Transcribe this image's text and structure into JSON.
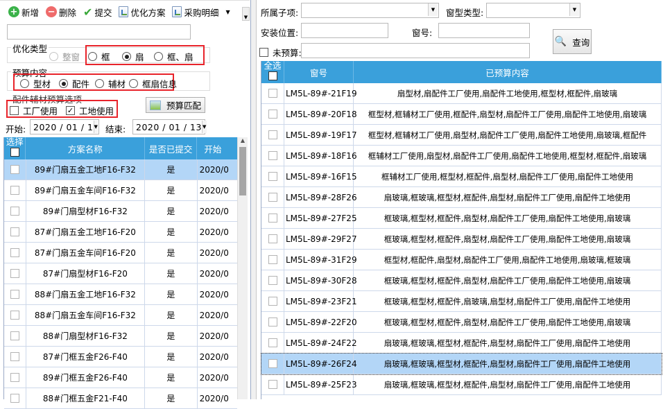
{
  "toolbar": {
    "add": "新增",
    "delete": "删除",
    "submit": "提交",
    "optimize": "优化方案",
    "purchase": "采购明细"
  },
  "opt_type": {
    "title": "优化类型",
    "options": [
      "整窗",
      "框",
      "扇",
      "框、扇"
    ],
    "selected": "扇",
    "disabled": "整窗"
  },
  "budget_content": {
    "title": "预算内容",
    "options": [
      "型材",
      "配件",
      "辅材",
      "框扇信息"
    ],
    "selected": "配件"
  },
  "budget_option": {
    "title": "配件辅材预算选项",
    "factory": "工厂使用",
    "factory_checked": false,
    "site": "工地使用",
    "site_checked": true
  },
  "match_button": "预算匹配",
  "dates": {
    "start_label": "开始:",
    "start": "2020 / 01 / 1",
    "end_label": "结束:",
    "end": "2020 / 01 / 13"
  },
  "left_grid": {
    "headers": [
      "选择",
      "方案名称",
      "是否已提交",
      "开始"
    ],
    "rows": [
      {
        "name": "89#门扇五金工地F16-F32",
        "submitted": "是",
        "start": "2020/0",
        "selected": true
      },
      {
        "name": "89#门扇五金车间F16-F32",
        "submitted": "是",
        "start": "2020/0"
      },
      {
        "name": "89#门扇型材F16-F32",
        "submitted": "是",
        "start": "2020/0"
      },
      {
        "name": "87#门扇五金工地F16-F20",
        "submitted": "是",
        "start": "2020/0"
      },
      {
        "name": "87#门扇五金车间F16-F20",
        "submitted": "是",
        "start": "2020/0"
      },
      {
        "name": "87#门扇型材F16-F20",
        "submitted": "是",
        "start": "2020/0"
      },
      {
        "name": "88#门扇五金工地F16-F32",
        "submitted": "是",
        "start": "2020/0"
      },
      {
        "name": "88#门扇五金车间F16-F32",
        "submitted": "是",
        "start": "2020/0"
      },
      {
        "name": "88#门扇型材F16-F32",
        "submitted": "是",
        "start": "2020/0"
      },
      {
        "name": "87#门框五金F26-F40",
        "submitted": "是",
        "start": "2020/0"
      },
      {
        "name": "89#门框五金F26-F40",
        "submitted": "是",
        "start": "2020/0"
      },
      {
        "name": "88#门框五金F21-F40",
        "submitted": "是",
        "start": "2020/0"
      }
    ]
  },
  "filters": {
    "sub_item": "所属子项:",
    "window_type": "窗型类型:",
    "location": "安装位置:",
    "window_no": "窗号:",
    "unbudgeted": "未预算:",
    "query": "查询"
  },
  "right_grid": {
    "headers": [
      "全选",
      "窗号",
      "已预算内容"
    ],
    "rows": [
      {
        "no": "LM5L-89#-21F19",
        "content": "扇型材,扇配件工厂使用,扇配件工地使用,框型材,框配件,扇玻璃"
      },
      {
        "no": "LM5L-89#-20F18",
        "content": "框型材,框辅材工厂使用,框配件,扇型材,扇配件工厂使用,扇配件工地使用,扇玻璃"
      },
      {
        "no": "LM5L-89#-19F17",
        "content": "框型材,框辅材工厂使用,扇型材,扇配件工厂使用,扇配件工地使用,扇玻璃,框配件"
      },
      {
        "no": "LM5L-89#-18F16",
        "content": "框辅材工厂使用,扇型材,扇配件工厂使用,扇配件工地使用,框型材,框配件,扇玻璃"
      },
      {
        "no": "LM5L-89#-16F15",
        "content": "框辅材工厂使用,框型材,框配件,扇型材,扇配件工厂使用,扇配件工地使用"
      },
      {
        "no": "LM5L-89#-28F26",
        "content": "扇玻璃,框玻璃,框型材,框配件,扇型材,扇配件工厂使用,扇配件工地使用"
      },
      {
        "no": "LM5L-89#-27F25",
        "content": "框玻璃,框型材,框配件,扇型材,扇配件工厂使用,扇配件工地使用,扇玻璃"
      },
      {
        "no": "LM5L-89#-29F27",
        "content": "框玻璃,框型材,框配件,扇型材,扇配件工厂使用,扇配件工地使用,扇玻璃"
      },
      {
        "no": "LM5L-89#-31F29",
        "content": "框型材,框配件,扇型材,扇配件工厂使用,扇配件工地使用,扇玻璃,框玻璃"
      },
      {
        "no": "LM5L-89#-30F28",
        "content": "框玻璃,框型材,框配件,扇型材,扇配件工厂使用,扇配件工地使用,扇玻璃"
      },
      {
        "no": "LM5L-89#-23F21",
        "content": "框玻璃,框型材,框配件,扇玻璃,扇型材,扇配件工厂使用,扇配件工地使用"
      },
      {
        "no": "LM5L-89#-22F20",
        "content": "框玻璃,框型材,框配件,扇型材,扇配件工厂使用,扇配件工地使用,扇玻璃"
      },
      {
        "no": "LM5L-89#-24F22",
        "content": "扇玻璃,框玻璃,框型材,框配件,扇型材,扇配件工厂使用,扇配件工地使用"
      },
      {
        "no": "LM5L-89#-26F24",
        "content": "扇玻璃,框玻璃,框型材,框配件,扇型材,扇配件工厂使用,扇配件工地使用",
        "selected": true
      },
      {
        "no": "LM5L-89#-25F23",
        "content": "扇玻璃,框玻璃,框型材,框配件,扇型材,扇配件工厂使用,扇配件工地使用"
      }
    ]
  },
  "colors": {
    "header": "#3aa0db",
    "selected_row": "#b3d6f7",
    "highlight_box": "#e8232a"
  }
}
